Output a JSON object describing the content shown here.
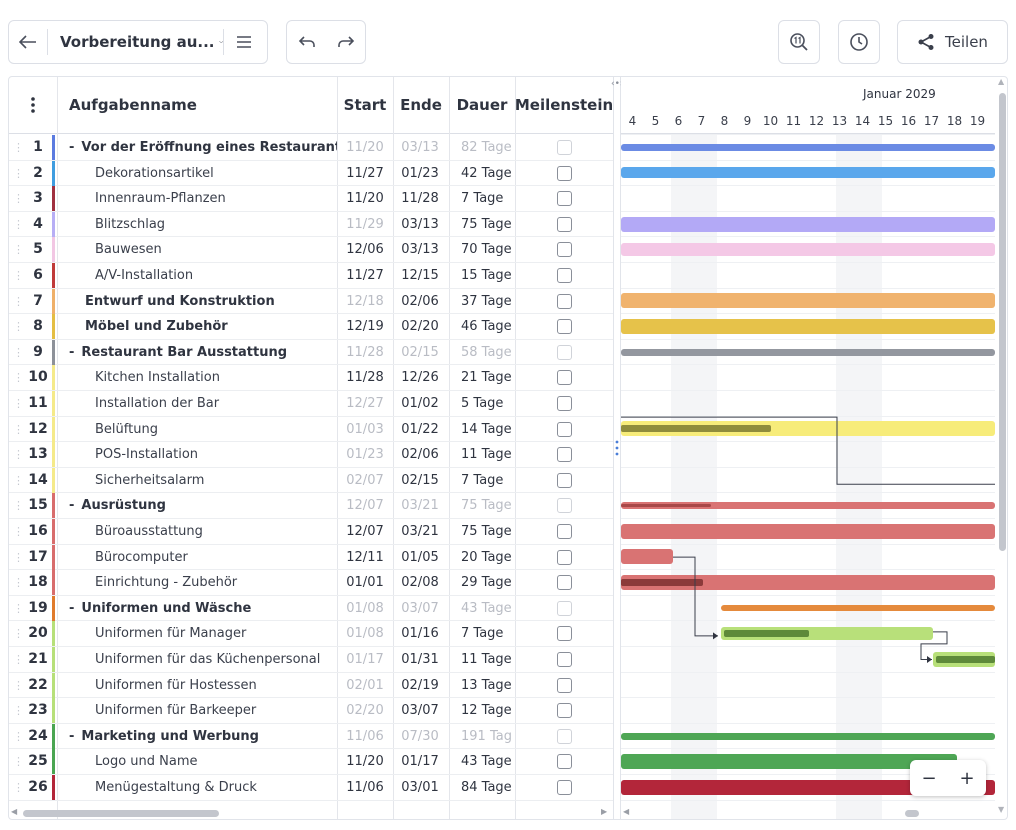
{
  "toolbar": {
    "title": "Vorbereitung au...",
    "share_label": "Teilen"
  },
  "columns": {
    "name": "Aufgabenname",
    "start": "Start",
    "end": "Ende",
    "duration": "Dauer",
    "milestone": "Meilenstein"
  },
  "timeline": {
    "month": "Januar 2029",
    "days": [
      "4",
      "5",
      "6",
      "7",
      "8",
      "9",
      "10",
      "11",
      "12",
      "13",
      "14",
      "15",
      "16",
      "17",
      "18",
      "19"
    ]
  },
  "tasks": [
    {
      "num": "1",
      "name": "Vor der Eröffnung eines Restaurants",
      "start": "11/20",
      "end": "03/13",
      "duration": "82 Tage",
      "level": 0,
      "summary": true,
      "collapse": "-",
      "greyStart": true,
      "greyEnd": true,
      "greyDur": true,
      "marker": "#5b7be0"
    },
    {
      "num": "2",
      "name": "Dekorationsartikel",
      "start": "11/27",
      "end": "01/23",
      "duration": "42 Tage",
      "level": 1,
      "summary": false,
      "collapse": "",
      "greyStart": false,
      "greyEnd": false,
      "greyDur": false,
      "marker": "#3f9de0"
    },
    {
      "num": "3",
      "name": "Innenraum-Pflanzen",
      "start": "11/20",
      "end": "11/28",
      "duration": "7 Tage",
      "level": 1,
      "summary": false,
      "collapse": "",
      "greyStart": false,
      "greyEnd": false,
      "greyDur": false,
      "marker": "#a03040"
    },
    {
      "num": "4",
      "name": "Blitzschlag",
      "start": "11/29",
      "end": "03/13",
      "duration": "75 Tage",
      "level": 1,
      "summary": false,
      "collapse": "",
      "greyStart": true,
      "greyEnd": false,
      "greyDur": false,
      "marker": "#b7aef5"
    },
    {
      "num": "5",
      "name": "Bauwesen",
      "start": "12/06",
      "end": "03/13",
      "duration": "70 Tage",
      "level": 1,
      "summary": false,
      "collapse": "",
      "greyStart": false,
      "greyEnd": false,
      "greyDur": false,
      "marker": "#f2c7e4"
    },
    {
      "num": "6",
      "name": "A/V-Installation",
      "start": "11/27",
      "end": "12/15",
      "duration": "15 Tage",
      "level": 1,
      "summary": false,
      "collapse": "",
      "greyStart": false,
      "greyEnd": false,
      "greyDur": false,
      "marker": "#c03a3a"
    },
    {
      "num": "7",
      "name": "Entwurf und Konstruktion",
      "start": "12/18",
      "end": "02/06",
      "duration": "37 Tage",
      "level": 0,
      "summary": true,
      "collapse": "",
      "greyStart": true,
      "greyEnd": false,
      "greyDur": false,
      "marker": "#efb06a"
    },
    {
      "num": "8",
      "name": "Möbel und Zubehör",
      "start": "12/19",
      "end": "02/20",
      "duration": "46 Tage",
      "level": 0,
      "summary": true,
      "collapse": "",
      "greyStart": false,
      "greyEnd": false,
      "greyDur": false,
      "marker": "#e4be44"
    },
    {
      "num": "9",
      "name": "Restaurant Bar Ausstattung",
      "start": "11/28",
      "end": "02/15",
      "duration": "58 Tage",
      "level": 0,
      "summary": true,
      "collapse": "-",
      "greyStart": true,
      "greyEnd": true,
      "greyDur": true,
      "marker": "#8d9199"
    },
    {
      "num": "10",
      "name": "Kitchen Installation",
      "start": "11/28",
      "end": "12/26",
      "duration": "21 Tage",
      "level": 1,
      "summary": false,
      "collapse": "",
      "greyStart": false,
      "greyEnd": false,
      "greyDur": false,
      "marker": "#f5ea8a"
    },
    {
      "num": "11",
      "name": "Installation der Bar",
      "start": "12/27",
      "end": "01/02",
      "duration": "5 Tage",
      "level": 1,
      "summary": false,
      "collapse": "",
      "greyStart": true,
      "greyEnd": false,
      "greyDur": false,
      "marker": "#f5ea8a"
    },
    {
      "num": "12",
      "name": "Belüftung",
      "start": "01/03",
      "end": "01/22",
      "duration": "14 Tage",
      "level": 1,
      "summary": false,
      "collapse": "",
      "greyStart": true,
      "greyEnd": false,
      "greyDur": false,
      "marker": "#f5ea8a"
    },
    {
      "num": "13",
      "name": "POS-Installation",
      "start": "01/23",
      "end": "02/06",
      "duration": "11 Tage",
      "level": 1,
      "summary": false,
      "collapse": "",
      "greyStart": true,
      "greyEnd": false,
      "greyDur": false,
      "marker": "#f5ea8a"
    },
    {
      "num": "14",
      "name": "Sicherheitsalarm",
      "start": "02/07",
      "end": "02/15",
      "duration": "7 Tage",
      "level": 1,
      "summary": false,
      "collapse": "",
      "greyStart": true,
      "greyEnd": false,
      "greyDur": false,
      "marker": "#f5ea8a"
    },
    {
      "num": "15",
      "name": "Ausrüstung",
      "start": "12/07",
      "end": "03/21",
      "duration": "75 Tage",
      "level": 0,
      "summary": true,
      "collapse": "-",
      "greyStart": true,
      "greyEnd": true,
      "greyDur": true,
      "marker": "#d86d6d"
    },
    {
      "num": "16",
      "name": "Büroausstattung",
      "start": "12/07",
      "end": "03/21",
      "duration": "75 Tage",
      "level": 1,
      "summary": false,
      "collapse": "",
      "greyStart": false,
      "greyEnd": false,
      "greyDur": false,
      "marker": "#d86d6d"
    },
    {
      "num": "17",
      "name": "Bürocomputer",
      "start": "12/11",
      "end": "01/05",
      "duration": "20 Tage",
      "level": 1,
      "summary": false,
      "collapse": "",
      "greyStart": false,
      "greyEnd": false,
      "greyDur": false,
      "marker": "#d86d6d"
    },
    {
      "num": "18",
      "name": "Einrichtung - Zubehör",
      "start": "01/01",
      "end": "02/08",
      "duration": "29 Tage",
      "level": 1,
      "summary": false,
      "collapse": "",
      "greyStart": false,
      "greyEnd": false,
      "greyDur": false,
      "marker": "#d86d6d"
    },
    {
      "num": "19",
      "name": "Uniformen und Wäsche",
      "start": "01/08",
      "end": "03/07",
      "duration": "43 Tage",
      "level": 0,
      "summary": true,
      "collapse": "-",
      "greyStart": true,
      "greyEnd": true,
      "greyDur": true,
      "marker": "#e07b2c"
    },
    {
      "num": "20",
      "name": "Uniformen für Manager",
      "start": "01/08",
      "end": "01/16",
      "duration": "7 Tage",
      "level": 1,
      "summary": false,
      "collapse": "",
      "greyStart": true,
      "greyEnd": false,
      "greyDur": false,
      "marker": "#b7e07a"
    },
    {
      "num": "21",
      "name": "Uniformen für das Küchenpersonal",
      "start": "01/17",
      "end": "01/31",
      "duration": "11 Tage",
      "level": 1,
      "summary": false,
      "collapse": "",
      "greyStart": true,
      "greyEnd": false,
      "greyDur": false,
      "marker": "#b7e07a"
    },
    {
      "num": "22",
      "name": "Uniformen für Hostessen",
      "start": "02/01",
      "end": "02/19",
      "duration": "13 Tage",
      "level": 1,
      "summary": false,
      "collapse": "",
      "greyStart": true,
      "greyEnd": false,
      "greyDur": false,
      "marker": "#b7e07a"
    },
    {
      "num": "23",
      "name": "Uniformen für Barkeeper",
      "start": "02/20",
      "end": "03/07",
      "duration": "12 Tage",
      "level": 1,
      "summary": false,
      "collapse": "",
      "greyStart": true,
      "greyEnd": false,
      "greyDur": false,
      "marker": "#b7e07a"
    },
    {
      "num": "24",
      "name": "Marketing und Werbung",
      "start": "11/06",
      "end": "07/30",
      "duration": "191 Tag",
      "level": 0,
      "summary": true,
      "collapse": "-",
      "greyStart": true,
      "greyEnd": true,
      "greyDur": true,
      "marker": "#4aa552"
    },
    {
      "num": "25",
      "name": "Logo und Name",
      "start": "11/20",
      "end": "01/17",
      "duration": "43 Tage",
      "level": 1,
      "summary": false,
      "collapse": "",
      "greyStart": false,
      "greyEnd": false,
      "greyDur": false,
      "marker": "#4aa552"
    },
    {
      "num": "26",
      "name": "Menügestaltung & Druck",
      "start": "11/06",
      "end": "03/01",
      "duration": "84 Tage",
      "level": 1,
      "summary": false,
      "collapse": "",
      "greyStart": false,
      "greyEnd": false,
      "greyDur": false,
      "marker": "#b3263a"
    }
  ],
  "bars": [
    {
      "color": "#6b8be4"
    },
    {
      "color": "#5aa7ec"
    },
    null,
    {
      "color": "#b3a9f6"
    },
    {
      "color": "#f4c8e6"
    },
    null,
    {
      "color": "#f0b36e"
    },
    {
      "color": "#e6c24a"
    },
    {
      "color": "#93979f"
    },
    null,
    null,
    {
      "color": "#f7ec7a",
      "progress_color": "#8f8c3c",
      "progress": 0.4
    },
    null,
    null,
    {
      "color": "#d97373",
      "progress_color": "#a84848",
      "progress": 0.24
    },
    {
      "color": "#d97373"
    },
    {
      "color": "#d97373"
    },
    {
      "color": "#d97373",
      "progress_color": "#8b3a3a",
      "progress": 0.22
    },
    {
      "color": "#e58a3c"
    },
    {
      "color": "#b8e07a",
      "progress_color": "#5e8a3a",
      "progress": 0.4
    },
    {
      "color": "#b8e07a",
      "progress_color": "#5e8a3a",
      "progress": 0.95
    },
    null,
    null,
    {
      "color": "#4ea655"
    },
    {
      "color": "#4ea655"
    },
    {
      "color": "#b3263a"
    }
  ],
  "zoom": {
    "minus": "−",
    "plus": "+"
  }
}
